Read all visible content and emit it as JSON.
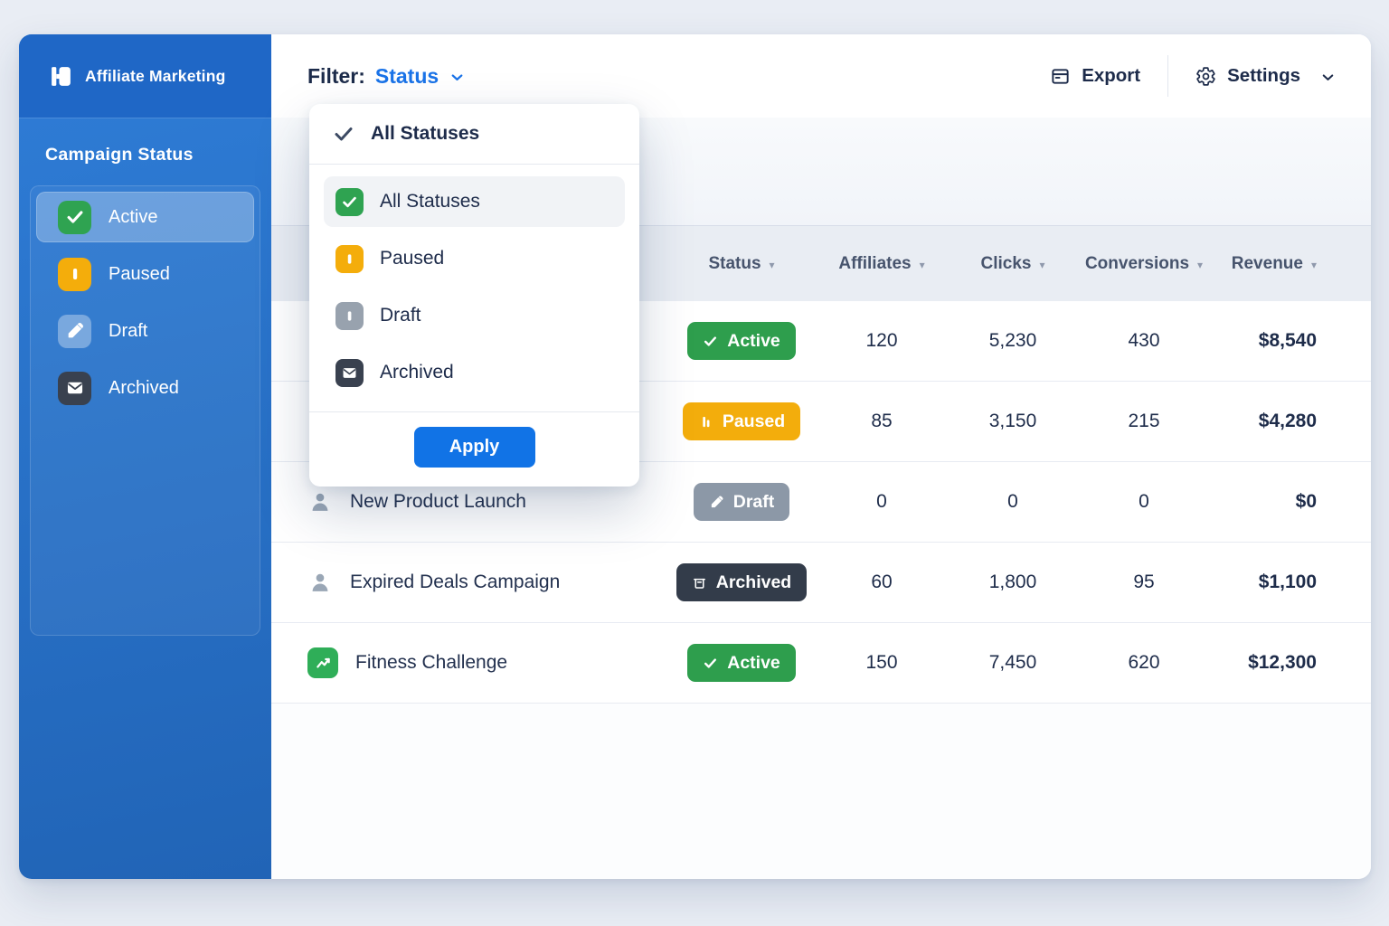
{
  "app": {
    "brand": "Affiliate Marketing"
  },
  "sidebar": {
    "heading": "Campaign Status",
    "items": [
      {
        "id": "active",
        "label": "Active",
        "selected": true
      },
      {
        "id": "paused",
        "label": "Paused",
        "selected": false
      },
      {
        "id": "draft",
        "label": "Draft",
        "selected": false
      },
      {
        "id": "archived",
        "label": "Archived",
        "selected": false
      }
    ]
  },
  "topbar": {
    "filter_label": "Filter:",
    "filter_value": "Status",
    "export_label": "Export",
    "settings_label": "Settings"
  },
  "filter_dropdown": {
    "header_label": "All Statuses",
    "options": [
      {
        "id": "all",
        "label": "All Statuses",
        "selected": true
      },
      {
        "id": "paused",
        "label": "Paused",
        "selected": false
      },
      {
        "id": "draft",
        "label": "Draft",
        "selected": false
      },
      {
        "id": "archived",
        "label": "Archived",
        "selected": false
      }
    ],
    "apply_label": "Apply"
  },
  "table": {
    "columns": [
      {
        "key": "status",
        "label": "Status"
      },
      {
        "key": "affiliates",
        "label": "Affiliates"
      },
      {
        "key": "clicks",
        "label": "Clicks"
      },
      {
        "key": "conversions",
        "label": "Conversions"
      },
      {
        "key": "revenue",
        "label": "Revenue"
      }
    ],
    "rows": [
      {
        "campaign": "",
        "icon": "",
        "status": "active",
        "status_label": "Active",
        "affiliates": "120",
        "clicks": "5,230",
        "conversions": "430",
        "revenue": "$8,540"
      },
      {
        "campaign": "",
        "icon": "",
        "status": "paused",
        "status_label": "Paused",
        "affiliates": "85",
        "clicks": "3,150",
        "conversions": "215",
        "revenue": "$4,280"
      },
      {
        "campaign": "New Product Launch",
        "icon": "person",
        "status": "draft",
        "status_label": "Draft",
        "affiliates": "0",
        "clicks": "0",
        "conversions": "0",
        "revenue": "$0"
      },
      {
        "campaign": "Expired Deals Campaign",
        "icon": "person",
        "status": "archived",
        "status_label": "Archived",
        "affiliates": "60",
        "clicks": "1,800",
        "conversions": "95",
        "revenue": "$1,100"
      },
      {
        "campaign": "Fitness Challenge",
        "icon": "trend",
        "status": "active",
        "status_label": "Active",
        "affiliates": "150",
        "clicks": "7,450",
        "conversions": "620",
        "revenue": "$12,300"
      }
    ]
  },
  "colors": {
    "accent_blue": "#1a73e8",
    "active_green": "#2e9e4d",
    "paused_amber": "#f3ad0c",
    "draft_gray": "#8c98a7",
    "archived_dark": "#333c4a",
    "sidebar_blue": "#2a74cf"
  }
}
